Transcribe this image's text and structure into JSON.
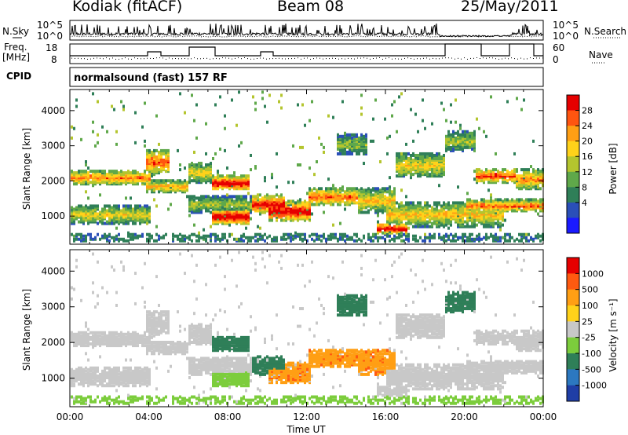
{
  "header": {
    "station": "Kodiak (fitACF)",
    "beam": "Beam 08",
    "date": "25/May/2011"
  },
  "nsky_panel": {
    "left_label": "N.Sky",
    "right_label": "N.Search",
    "left_ticks": [
      "10^5",
      "10^0"
    ],
    "right_ticks": [
      "10^5",
      "10^0"
    ]
  },
  "freq_panel": {
    "left_label_1": "Freq.",
    "left_label_2": "[MHz]",
    "right_label": "Nave",
    "left_ticks": [
      "18",
      "8"
    ],
    "right_ticks": [
      "60",
      "0"
    ]
  },
  "cpid_panel": {
    "label": "CPID",
    "text": "normalsound (fast) 157 RF"
  },
  "chart_data": [
    {
      "type": "heatmap",
      "title": "",
      "ylabel": "Slant Range [km]",
      "xlabel": "",
      "ylim": [
        200,
        4600
      ],
      "yticks": [
        1000,
        2000,
        3000,
        4000
      ],
      "colorbar": {
        "label": "Power [dB]",
        "ticks": [
          "28",
          "24",
          "20",
          "16",
          "12",
          "8",
          "4"
        ],
        "range": [
          0,
          32
        ],
        "colors": [
          "#1a1aff",
          "#2a4fb8",
          "#2f7f58",
          "#5fa84a",
          "#b4c52e",
          "#ffd21a",
          "#ff9f14",
          "#ff5510",
          "#e60000"
        ]
      }
    },
    {
      "type": "heatmap",
      "title": "",
      "ylabel": "Slant Range [km]",
      "xlabel": "Time UT",
      "ylim": [
        200,
        4600
      ],
      "yticks": [
        1000,
        2000,
        3000,
        4000
      ],
      "xticks": [
        "00:00",
        "04:00",
        "08:00",
        "12:00",
        "16:00",
        "20:00",
        "00:00"
      ],
      "xlim_hours": [
        0,
        24
      ],
      "colorbar": {
        "label": "Velocity [m s⁻¹]",
        "ticks": [
          "1000",
          "500",
          "100",
          "25",
          "-25",
          "-100",
          "-500",
          "-1000"
        ],
        "colors": [
          "#1f3ea6",
          "#2c78c0",
          "#2f7f58",
          "#7ccd3c",
          "#c8c8c8",
          "#ffd21a",
          "#ff9f14",
          "#ff5a10",
          "#e60000"
        ]
      }
    }
  ]
}
